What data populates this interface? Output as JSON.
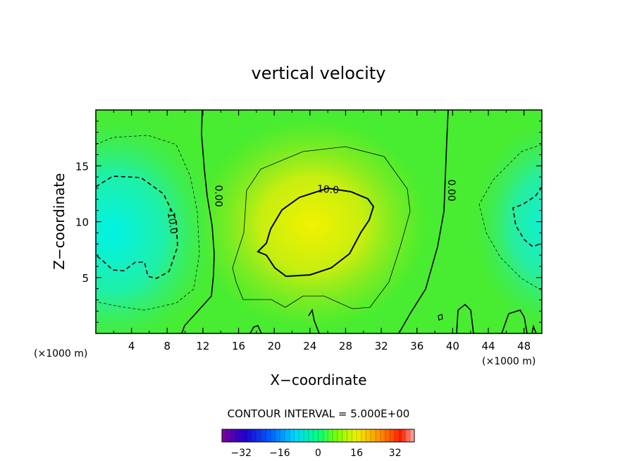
{
  "chart_data": {
    "type": "heatmap",
    "title": "vertical velocity",
    "xlabel": "X−coordinate",
    "ylabel": "Z−coordinate",
    "x_unit_left": "(×1000 m)",
    "x_unit_right": "(×1000 m)",
    "xlim": [
      0,
      50
    ],
    "ylim": [
      0,
      20
    ],
    "x_ticks": [
      4,
      8,
      12,
      16,
      20,
      24,
      28,
      32,
      36,
      40,
      44,
      48
    ],
    "y_ticks": [
      5,
      10,
      15
    ],
    "contour_interval_text": "CONTOUR INTERVAL = 5.000E+00",
    "colorbar": {
      "min": -40,
      "max": 40,
      "ticks": [
        -32,
        -16,
        0,
        16,
        32
      ]
    },
    "contour_labels": [
      {
        "text": "10.0",
        "x": 26.0,
        "z": 12.6,
        "angle": 4
      },
      {
        "text": "0.00",
        "x": 13.4,
        "z": 12.3,
        "angle": 90
      },
      {
        "text": "0.00",
        "x": 39.5,
        "z": 12.8,
        "angle": 90
      },
      {
        "text": "-10.0",
        "x": 8.2,
        "z": 10.0,
        "angle": 82
      }
    ],
    "field_features": [
      {
        "kind": "max",
        "x": 24,
        "z": 10,
        "value": 13
      },
      {
        "kind": "min",
        "x": 2,
        "z": 8.5,
        "value": -14
      },
      {
        "kind": "min",
        "x": 50,
        "z": 9.5,
        "value": -12
      }
    ]
  }
}
